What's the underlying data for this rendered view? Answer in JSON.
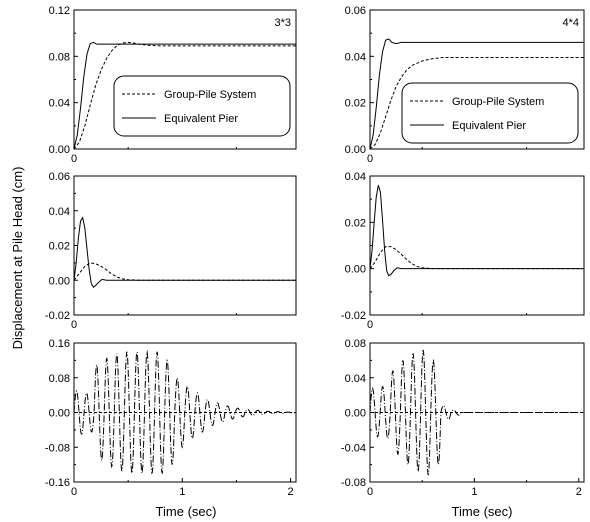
{
  "figure": {
    "ylabel": "Displacement at Pile Head (cm)",
    "xlabel": "Time (sec)"
  },
  "legend": {
    "group_pile": "Group-Pile System",
    "equivalent_pier": "Equivalent Pier"
  },
  "chart_data": [
    {
      "type": "line",
      "panel": "top-left",
      "annotation": "3*3",
      "xlim": [
        0,
        2.05
      ],
      "ylim": [
        0,
        0.12
      ],
      "xticks": [
        0
      ],
      "yticks": [
        0,
        0.04,
        0.08,
        0.12
      ],
      "y_tick_labels": [
        "0.00",
        "0.04",
        "0.08",
        "0.12"
      ],
      "x_tick_labels": [
        "0"
      ],
      "legend_placement": "center-right",
      "series": [
        {
          "name": "Group-Pile System",
          "style": "dashed",
          "x": [
            0,
            0.05,
            0.1,
            0.15,
            0.2,
            0.25,
            0.3,
            0.35,
            0.4,
            0.45,
            0.5,
            0.55,
            0.6,
            0.7,
            0.8,
            1.0,
            1.5,
            2.05
          ],
          "y": [
            0,
            0.006,
            0.02,
            0.038,
            0.055,
            0.068,
            0.078,
            0.085,
            0.0895,
            0.0915,
            0.092,
            0.0915,
            0.0905,
            0.0895,
            0.089,
            0.089,
            0.089,
            0.089
          ]
        },
        {
          "name": "Equivalent Pier",
          "style": "solid",
          "x": [
            0,
            0.03,
            0.06,
            0.09,
            0.12,
            0.15,
            0.18,
            0.21,
            0.25,
            0.3,
            0.5,
            1.0,
            1.5,
            2.05
          ],
          "y": [
            0,
            0.012,
            0.035,
            0.062,
            0.082,
            0.091,
            0.092,
            0.0905,
            0.0905,
            0.0905,
            0.0905,
            0.0905,
            0.0905,
            0.0905
          ]
        }
      ]
    },
    {
      "type": "line",
      "panel": "top-right",
      "annotation": "4*4",
      "xlim": [
        0,
        2.05
      ],
      "ylim": [
        0,
        0.06
      ],
      "xticks": [
        0
      ],
      "yticks": [
        0,
        0.02,
        0.04,
        0.06
      ],
      "y_tick_labels": [
        "0.00",
        "0.02",
        "0.04",
        "0.06"
      ],
      "x_tick_labels": [
        "0"
      ],
      "legend_placement": "lower-right",
      "series": [
        {
          "name": "Group-Pile System",
          "style": "dashed",
          "x": [
            0,
            0.05,
            0.1,
            0.15,
            0.2,
            0.25,
            0.3,
            0.35,
            0.4,
            0.5,
            0.6,
            0.7,
            0.8,
            0.9,
            1.0,
            1.5,
            2.05
          ],
          "y": [
            0,
            0.002,
            0.007,
            0.014,
            0.021,
            0.027,
            0.031,
            0.034,
            0.036,
            0.038,
            0.039,
            0.0395,
            0.0395,
            0.0395,
            0.0395,
            0.0395,
            0.0395
          ]
        },
        {
          "name": "Equivalent Pier",
          "style": "solid",
          "x": [
            0,
            0.03,
            0.06,
            0.09,
            0.12,
            0.15,
            0.18,
            0.21,
            0.25,
            0.3,
            0.5,
            1.0,
            1.5,
            2.05
          ],
          "y": [
            0,
            0.006,
            0.018,
            0.032,
            0.042,
            0.047,
            0.0475,
            0.046,
            0.0455,
            0.046,
            0.046,
            0.046,
            0.046,
            0.046
          ]
        }
      ]
    },
    {
      "type": "line",
      "panel": "middle-left",
      "xlim": [
        0,
        2.05
      ],
      "ylim": [
        -0.02,
        0.06
      ],
      "xticks": [
        0
      ],
      "yticks": [
        -0.02,
        0,
        0.02,
        0.04,
        0.06
      ],
      "y_tick_labels": [
        "-0.02",
        "0.00",
        "0.02",
        "0.04",
        "0.06"
      ],
      "x_tick_labels": [
        "0"
      ],
      "series": [
        {
          "name": "Group-Pile System",
          "style": "dashed",
          "x": [
            0,
            0.05,
            0.1,
            0.15,
            0.2,
            0.25,
            0.3,
            0.35,
            0.4,
            0.45,
            0.5,
            0.6,
            0.8,
            1.0,
            1.5,
            2.05
          ],
          "y": [
            0,
            0.004,
            0.008,
            0.01,
            0.0095,
            0.008,
            0.006,
            0.0035,
            0.0018,
            0.0008,
            0.0003,
            0,
            0,
            0,
            0,
            0
          ]
        },
        {
          "name": "Equivalent Pier",
          "style": "solid",
          "x": [
            0,
            0.02,
            0.04,
            0.06,
            0.08,
            0.1,
            0.12,
            0.14,
            0.16,
            0.18,
            0.2,
            0.23,
            0.26,
            0.3,
            0.35,
            0.5,
            1.0,
            1.5,
            2.05
          ],
          "y": [
            0,
            0.01,
            0.024,
            0.034,
            0.036,
            0.03,
            0.018,
            0.006,
            -0.002,
            -0.004,
            -0.003,
            -0.001,
            0.0005,
            0,
            0,
            0,
            0,
            0,
            0
          ]
        }
      ]
    },
    {
      "type": "line",
      "panel": "middle-right",
      "xlim": [
        0,
        2.05
      ],
      "ylim": [
        -0.02,
        0.04
      ],
      "xticks": [
        0
      ],
      "yticks": [
        -0.02,
        0,
        0.02,
        0.04
      ],
      "y_tick_labels": [
        "-0.02",
        "0.00",
        "0.02",
        "0.04"
      ],
      "x_tick_labels": [
        "0"
      ],
      "series": [
        {
          "name": "Group-Pile System",
          "style": "dashed",
          "x": [
            0,
            0.05,
            0.1,
            0.15,
            0.2,
            0.25,
            0.3,
            0.35,
            0.4,
            0.45,
            0.5,
            0.6,
            0.8,
            1.0,
            1.5,
            2.05
          ],
          "y": [
            0,
            0.003,
            0.007,
            0.0095,
            0.0095,
            0.0082,
            0.0062,
            0.004,
            0.0022,
            0.001,
            0.0004,
            0,
            0,
            0,
            0,
            0
          ]
        },
        {
          "name": "Equivalent Pier",
          "style": "solid",
          "x": [
            0,
            0.02,
            0.04,
            0.06,
            0.08,
            0.1,
            0.12,
            0.14,
            0.16,
            0.18,
            0.2,
            0.23,
            0.26,
            0.3,
            0.35,
            0.5,
            1.0,
            1.5,
            2.05
          ],
          "y": [
            0,
            0.008,
            0.02,
            0.031,
            0.036,
            0.033,
            0.021,
            0.008,
            -0.001,
            -0.003,
            -0.0025,
            -0.0008,
            0.0004,
            0,
            0,
            0,
            0,
            0,
            0
          ]
        }
      ]
    },
    {
      "type": "line",
      "panel": "bottom-left",
      "xlim": [
        0,
        2.05
      ],
      "ylim": [
        -0.16,
        0.16
      ],
      "xticks": [
        0,
        1,
        2
      ],
      "yticks": [
        -0.16,
        -0.08,
        0,
        0.08,
        0.16
      ],
      "y_tick_labels": [
        "-0.16",
        "-0.08",
        "0.00",
        "0.08",
        "0.16"
      ],
      "x_tick_labels": [
        "0",
        "1",
        "2"
      ],
      "series": [
        {
          "name": "Group-Pile System",
          "style": "dashed",
          "x": [
            0,
            0.5,
            1.0,
            1.5,
            2.05
          ],
          "y": [
            0,
            0,
            0,
            0,
            0
          ]
        },
        {
          "name": "Equivalent Pier",
          "style": "dash-dot",
          "oscillation": {
            "period": 0.093,
            "cycles": 22,
            "amplitudes": [
              0.05,
              0.045,
              0.11,
              0.125,
              0.135,
              0.14,
              0.14,
              0.14,
              0.14,
              0.12,
              0.08,
              0.06,
              0.045,
              0.03,
              0.022,
              0.015,
              0.01,
              0.007,
              0.005,
              0.003,
              0.002,
              0.001
            ]
          }
        }
      ]
    },
    {
      "type": "line",
      "panel": "bottom-right",
      "xlim": [
        0,
        2.05
      ],
      "ylim": [
        -0.08,
        0.08
      ],
      "xticks": [
        0,
        1,
        2
      ],
      "yticks": [
        -0.08,
        -0.04,
        0,
        0.04,
        0.08
      ],
      "y_tick_labels": [
        "-0.08",
        "-0.04",
        "0.00",
        "0.04",
        "0.08"
      ],
      "x_tick_labels": [
        "0",
        "1",
        "2"
      ],
      "series": [
        {
          "name": "Group-Pile System",
          "style": "dashed",
          "x": [
            0,
            0.5,
            1.0,
            1.5,
            2.05
          ],
          "y": [
            0,
            0,
            0,
            0,
            0
          ]
        },
        {
          "name": "Equivalent Pier",
          "style": "dash-dot",
          "oscillation": {
            "period": 0.097,
            "cycles": 9,
            "amplitudes": [
              0.028,
              0.03,
              0.048,
              0.06,
              0.068,
              0.072,
              0.06,
              0.008,
              0.003
            ]
          }
        }
      ]
    }
  ]
}
